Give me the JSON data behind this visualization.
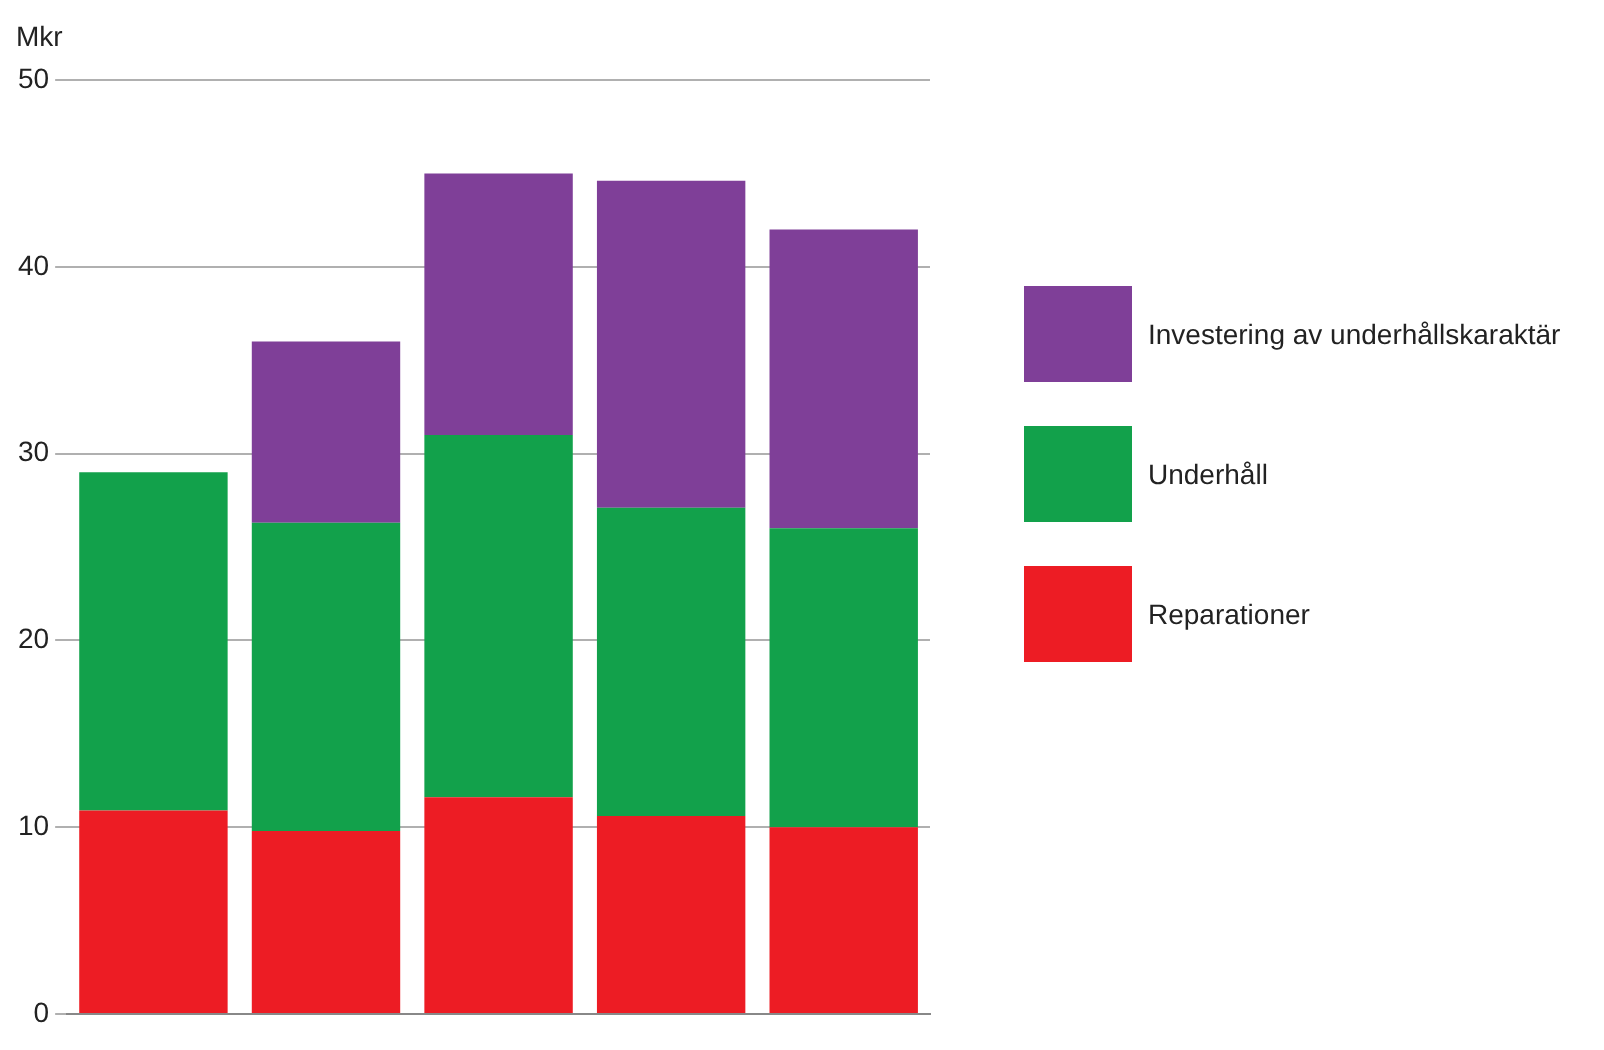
{
  "chart_data": {
    "type": "bar",
    "ylabel": "Mkr",
    "categories": [
      null,
      null,
      null,
      null,
      null
    ],
    "stacked": true,
    "series": [
      {
        "name": "Reparationer",
        "color": "#ed1c24",
        "values": [
          10.9,
          9.8,
          11.6,
          10.6,
          10.0
        ]
      },
      {
        "name": "Underhåll",
        "color": "#12a14b",
        "values": [
          18.1,
          16.5,
          19.4,
          16.5,
          16.0
        ]
      },
      {
        "name": "Investering av underhållskaraktär",
        "color": "#7f3f98",
        "values": [
          null,
          9.7,
          14.0,
          17.5,
          16.0
        ]
      }
    ],
    "ylim": [
      0,
      50
    ],
    "yticks": [
      0,
      10,
      20,
      30,
      40,
      50
    ],
    "grid": "y",
    "legend": "right",
    "tick_labels": "y"
  }
}
